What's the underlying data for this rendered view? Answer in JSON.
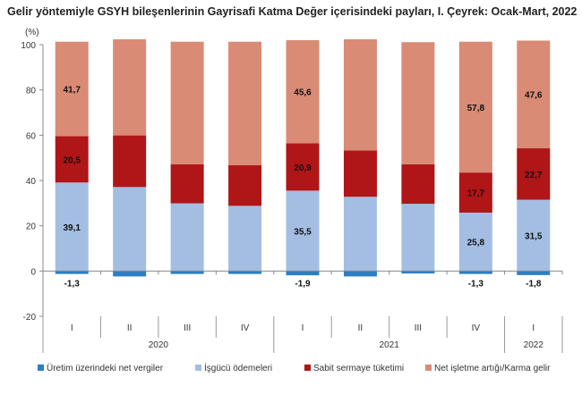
{
  "chart_data": {
    "type": "bar",
    "stacked": true,
    "title": "Gelir yöntemiyle GSYH bileşenlerinin Gayrisafi Katma Değer içerisindeki payları, I. Çeyrek: Ocak-Mart, 2022",
    "ylabel": "(%)",
    "ylim": [
      -20,
      100
    ],
    "yticks": [
      -20,
      0,
      20,
      40,
      60,
      80,
      100
    ],
    "grid": false,
    "legend": "bottom",
    "categories": [
      "I",
      "II",
      "III",
      "IV",
      "I",
      "II",
      "III",
      "IV",
      "I"
    ],
    "groups": [
      {
        "label": "2020",
        "span": 4
      },
      {
        "label": "2021",
        "span": 4
      },
      {
        "label": "2022",
        "span": 1
      }
    ],
    "series": [
      {
        "name": "Üretim üzerindeki net vergiler",
        "color": "#2E7EC1",
        "values": [
          -1.3,
          -2.4,
          -1.3,
          -1.3,
          -1.9,
          -2.4,
          -1.1,
          -1.3,
          -1.8
        ],
        "labels": [
          "-1,3",
          "",
          "",
          "",
          "-1,9",
          "",
          "",
          "-1,3",
          "-1,8"
        ]
      },
      {
        "name": "İşgücü ödemeleri",
        "color": "#A4BEE3",
        "values": [
          39.1,
          37.1,
          29.9,
          28.8,
          35.5,
          32.8,
          29.7,
          25.8,
          31.5
        ],
        "labels": [
          "39,1",
          "",
          "",
          "",
          "35,5",
          "",
          "",
          "25,8",
          "31,5"
        ]
      },
      {
        "name": "Sabit sermaye tüketimi",
        "color": "#B01517",
        "values": [
          20.5,
          22.8,
          17.2,
          18.0,
          20.9,
          20.5,
          17.4,
          17.7,
          22.7
        ],
        "labels": [
          "20,5",
          "",
          "",
          "",
          "20,9",
          "",
          "",
          "17,7",
          "22,7"
        ]
      },
      {
        "name": "Net işletme artığı/Karma gelir",
        "color": "#D98B76",
        "values": [
          41.7,
          42.5,
          54.2,
          54.5,
          45.6,
          49.1,
          54.0,
          57.8,
          47.6
        ],
        "labels": [
          "41,7",
          "",
          "",
          "",
          "45,6",
          "",
          "",
          "57,8",
          "47,6"
        ]
      }
    ]
  }
}
